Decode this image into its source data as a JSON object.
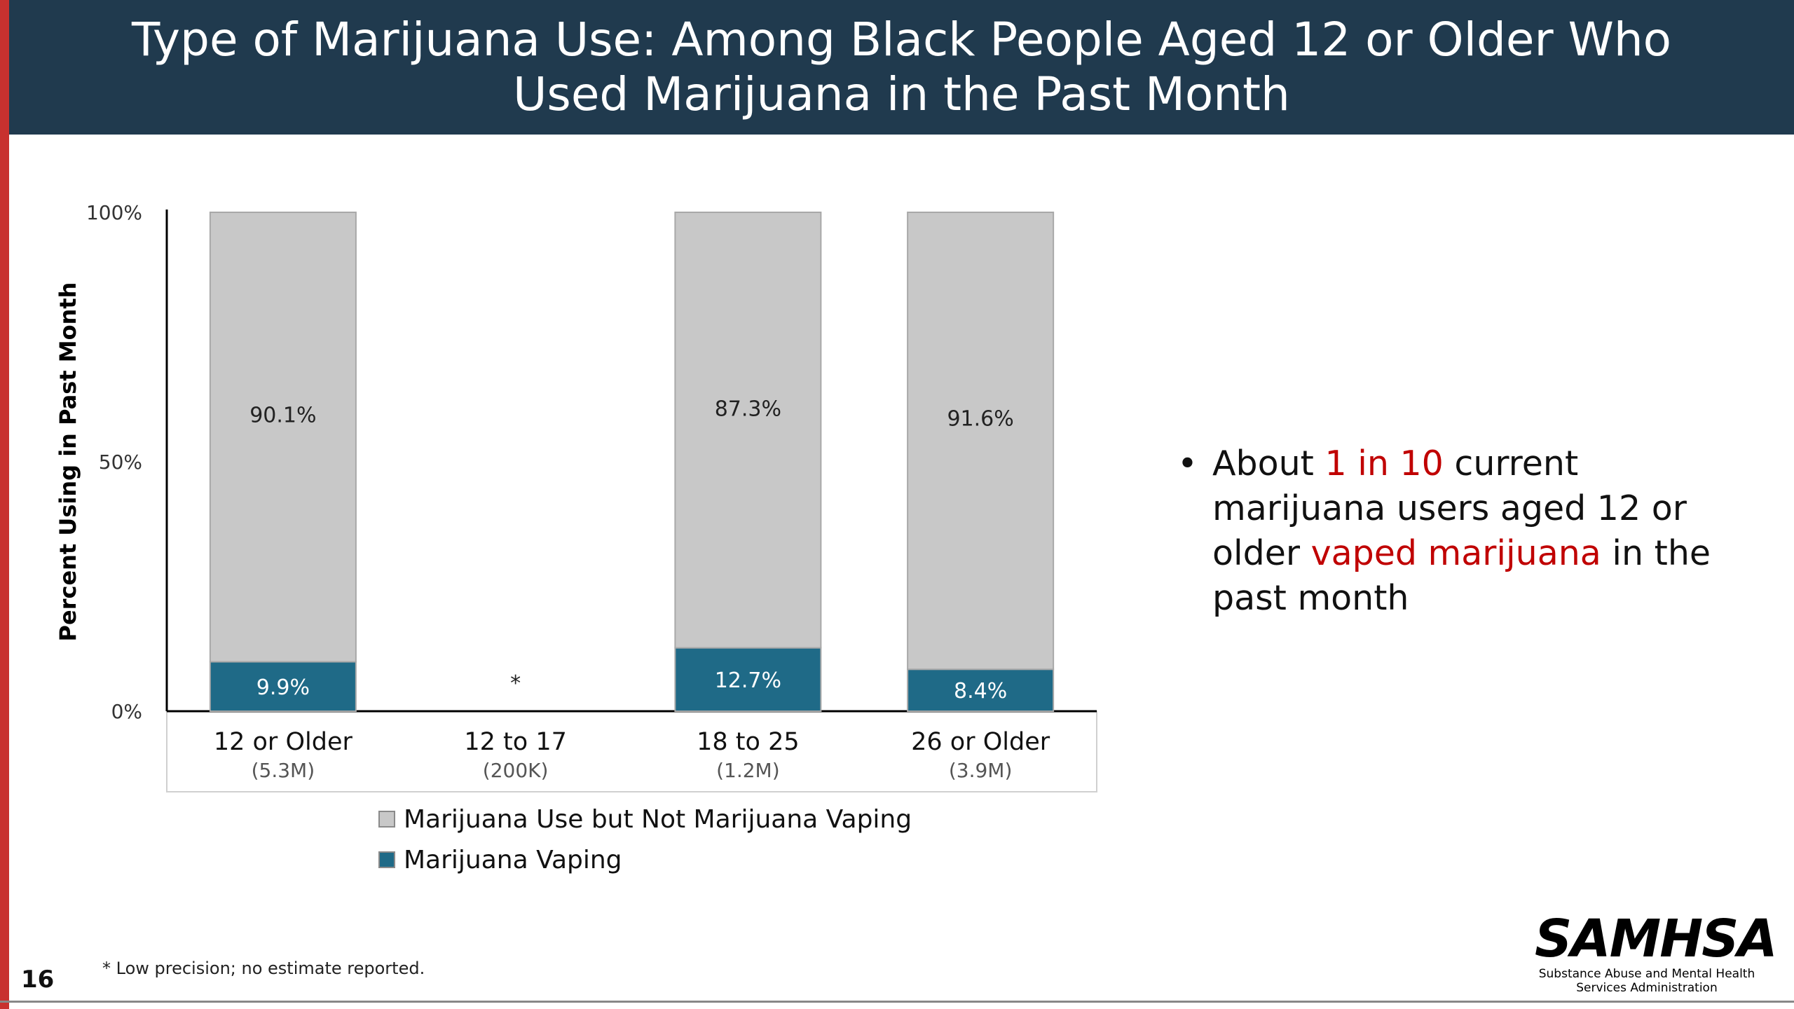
{
  "slide": {
    "title": "Type of Marijuana Use: Among Black People Aged 12 or Older Who Used Marijuana in the Past Month",
    "page_number": "16",
    "footnote": "* Low precision; no estimate reported.",
    "logo": {
      "mark": "SAMHSA",
      "tagline_line1": "Substance Abuse and Mental Health",
      "tagline_line2": "Services Administration"
    },
    "bullet": {
      "text_1": "About ",
      "highlight_1": "1 in 10",
      "text_2": " current marijuana users aged 12 or older ",
      "highlight_2": "vaped marijuana",
      "text_3": " in the past month"
    },
    "colors": {
      "header_bg": "#203a4e",
      "accent_red": "#c8312f",
      "highlight": "#c00000"
    }
  },
  "chart_data": {
    "type": "bar",
    "stacked": true,
    "categories": [
      "12 or Older",
      "12 to 17",
      "18 to 25",
      "26 or Older"
    ],
    "category_sublabels": [
      "(5.3M)",
      "(200K)",
      "(1.2M)",
      "(3.9M)"
    ],
    "series": [
      {
        "name": "Marijuana Vaping",
        "color": "#1f6a87",
        "label_color": "#ffffff",
        "values": [
          9.9,
          null,
          12.7,
          8.4
        ],
        "labels": [
          "9.9%",
          "*",
          "12.7%",
          "8.4%"
        ]
      },
      {
        "name": "Marijuana Use but Not Marijuana Vaping",
        "color": "#c8c8c8",
        "label_color": "#222222",
        "values": [
          90.1,
          null,
          87.3,
          91.6
        ],
        "labels": [
          "90.1%",
          "",
          "87.3%",
          "91.6%"
        ]
      }
    ],
    "legend_order": [
      1,
      0
    ],
    "ylabel": "Percent Using in Past Month",
    "yticks": [
      0,
      50,
      100
    ],
    "ytick_labels": [
      "0%",
      "50%",
      "100%"
    ],
    "ylim": [
      0,
      100
    ],
    "legend_position": "bottom",
    "grid": false
  }
}
